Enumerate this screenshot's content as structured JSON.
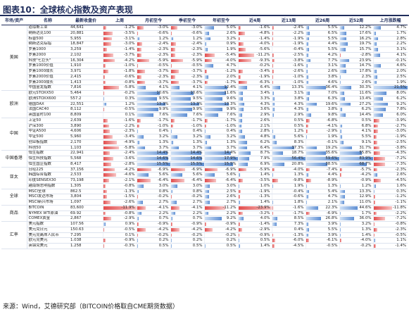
{
  "title": "图表10：全球核心指数及资产表现",
  "source": "来源：Wind，艾德研究部（BITCOIN价格取自CME期货数据）",
  "headers": [
    "市场/资产",
    "名称",
    "最新收盘价",
    "上周",
    "月初至今",
    "季初至今",
    "年初至今",
    "近4周",
    "近13周",
    "近26周",
    "近52周",
    "上月涨跌幅"
  ],
  "groups": [
    {
      "label": "美国",
      "rows": [
        {
          "name": "道琼斯工业",
          "last": "44,641",
          "vals": [
            -1.2,
            -3.0,
            -3.0,
            5.0,
            -1.6,
            -2.4,
            5.5,
            12.2,
            4.7
          ]
        },
        {
          "name": "纳斯达克100",
          "last": "20,881",
          "vals": [
            -3.5,
            -0.6,
            -0.6,
            2.6,
            -4.8,
            -2.2,
            6.5,
            17.6,
            1.7
          ]
        },
        {
          "name": "标普500",
          "last": "5,955",
          "vals": [
            -3.1,
            1.2,
            1.2,
            3.2,
            -1.4,
            -1.9,
            5.5,
            16.2,
            2.8
          ]
        },
        {
          "name": "纳斯达克综指",
          "last": "18,847",
          "vals": [
            -3.0,
            -2.4,
            -2.4,
            0.9,
            -4.0,
            -1.9,
            4.4,
            19.7,
            2.2
          ]
        },
        {
          "name": "罗素1000",
          "last": "3,259",
          "vals": [
            -1.4,
            -2.3,
            -2.3,
            1.9,
            -5.6,
            -0.4,
            5.5,
            15.7,
            3.1
          ]
        },
        {
          "name": "罗素2000",
          "last": "2,102",
          "vals": [
            -3.7,
            -2.3,
            -2.3,
            -5.4,
            -11.2,
            -2.5,
            4.2,
            -2.8,
            4.1
          ]
        },
        {
          "name": "科技\"七巨头\"",
          "last": "16,304",
          "vals": [
            -4.2,
            -5.9,
            -5.9,
            -4.0,
            -9.3,
            -3.8,
            7.7,
            23.9,
            -0.1
          ]
        },
        {
          "name": "罗素1000价值",
          "last": "1,910",
          "vals": [
            -1.0,
            -0.5,
            -0.5,
            4.7,
            -0.2,
            -1.6,
            3.1,
            14.7,
            4.6
          ]
        },
        {
          "name": "罗素1000成长",
          "last": "3,971",
          "vals": [
            -1.8,
            -3.7,
            -3.7,
            -1.2,
            -3.4,
            -2.6,
            2.6,
            17.8,
            2.0
          ]
        },
        {
          "name": "罗素2000价值",
          "last": "2,415",
          "vals": [
            -0.6,
            -2.3,
            -2.3,
            2.0,
            -1.9,
            -1.0,
            3.8,
            2.3,
            2.5
          ]
        },
        {
          "name": "罗素2000成长",
          "last": "1,413",
          "vals": [
            -0.8,
            -3.7,
            -3.7,
            -1.7,
            -6.3,
            -1.0,
            4.6,
            2.6,
            1.9
          ]
        },
        {
          "name": "中国金龙指数",
          "last": "7,816",
          "vals": [
            -5.8,
            4.1,
            4.1,
            12.4,
            6.4,
            13.3,
            36.4,
            30.3,
            21.5
          ]
        }
      ]
    },
    {
      "label": "欧洲",
      "rows": [
        {
          "name": "欧元STOXX50",
          "last": "5,464",
          "vals": [
            -0.2,
            10.6,
            10.6,
            11.6,
            3.4,
            3.1,
            7.0,
            11.6,
            8.0
          ]
        },
        {
          "name": "欧洲STOXX600",
          "last": "557.2",
          "vals": [
            0.3,
            9.5,
            9.5,
            9.6,
            3.3,
            3.8,
            6.3,
            13.4,
            6.2
          ]
        },
        {
          "name": "德国DAX",
          "last": "22,551",
          "vals": [
            1.2,
            13.3,
            13.3,
            13.3,
            4.3,
            4.3,
            19.6,
            27.2,
            9.2
          ]
        },
        {
          "name": "法国CAC40",
          "last": "8,112",
          "vals": [
            -0.5,
            9.9,
            9.9,
            9.9,
            3.6,
            4.3,
            3.8,
            6.2,
            7.8
          ]
        },
        {
          "name": "英国富时100",
          "last": "8,809",
          "vals": [
            0.1,
            7.6,
            7.6,
            7.6,
            2.9,
            2.9,
            9.8,
            14.4,
            6.0
          ]
        }
      ]
    },
    {
      "label": "中国",
      "rows": [
        {
          "name": "上证50",
          "last": "2,639",
          "vals": [
            -1.6,
            -1.7,
            -1.7,
            -1.7,
            2.6,
            0.5,
            -6.8,
            0.5,
            -3.9
          ]
        },
        {
          "name": "沪深300",
          "last": "3,890",
          "vals": [
            -2.2,
            -1.0,
            -1.0,
            -1.0,
            2.1,
            0.5,
            -4.1,
            6.8,
            -2.7
          ]
        },
        {
          "name": "中证A500",
          "last": "4,606",
          "vals": [
            -2.3,
            0.4,
            0.4,
            0.4,
            2.8,
            1.2,
            -2.9,
            4.1,
            -3.0
          ]
        },
        {
          "name": "中证500",
          "last": "5,960",
          "vals": [
            -3.4,
            3.2,
            3.2,
            3.2,
            4.8,
            5.6,
            1.9,
            5.5,
            -1.9
          ]
        },
        {
          "name": "创业板指数",
          "last": "2,170",
          "vals": [
            -4.9,
            1.3,
            1.3,
            1.3,
            6.2,
            8.3,
            -0.1,
            9.1,
            -2.5
          ]
        },
        {
          "name": "科创50",
          "last": "1,103",
          "vals": [
            -5.8,
            3.7,
            3.7,
            3.7,
            6.4,
            37.3,
            19.2,
            31.7,
            -3.8
          ]
        }
      ]
    },
    {
      "label": "中国香港",
      "rows": [
        {
          "name": "恒生指数",
          "last": "22,941",
          "vals": [
            -2.4,
            14.4,
            14.4,
            14.4,
            8.7,
            18.7,
            35.6,
            55.8,
            -4.3
          ]
        },
        {
          "name": "恒生科技指数",
          "last": "5,568",
          "vals": [
            -3.6,
            14.6,
            14.6,
            17.9,
            7.9,
            56.4,
            59.6,
            83.9,
            -7.2
          ]
        },
        {
          "name": "恒生国企指数",
          "last": "8,417",
          "vals": [
            -2.8,
            15.5,
            15.5,
            15.5,
            6.9,
            20.8,
            38.5,
            68.7,
            -7.3
          ]
        }
      ]
    },
    {
      "label": "亚太",
      "rows": [
        {
          "name": "日经225",
          "last": "37,156",
          "vals": [
            -4.2,
            -6.9,
            -6.9,
            -6.9,
            -5.9,
            -4.0,
            -7.4,
            -5.7,
            -2.3
          ]
        },
        {
          "name": "韩国综合指数",
          "last": "2,533",
          "vals": [
            -4.6,
            5.6,
            5.6,
            5.6,
            1.4,
            1.3,
            4.4,
            -4.2,
            2.6
          ]
        },
        {
          "name": "印度SENSEX30",
          "last": "73,198",
          "vals": [
            -2.1,
            -6.4,
            -6.4,
            -6.4,
            -3.5,
            -9.8,
            -8.9,
            -0.9,
            -4.5
          ]
        },
        {
          "name": "越南胡志明指数",
          "last": "1,305",
          "vals": [
            -0.8,
            3.0,
            3.0,
            3.0,
            1.0,
            1.9,
            1.3,
            1.2,
            1.6
          ]
        }
      ]
    },
    {
      "label": "全球",
      "rows": [
        {
          "name": "MSCI全球",
          "last": "862.5",
          "vals": [
            -1.3,
            0.8,
            0.8,
            2.5,
            -1.9,
            -0.4,
            5.4,
            13.3,
            0.3
          ]
        },
        {
          "name": "MSCI发达市场",
          "last": "3,804",
          "vals": [
            -1.5,
            -0.2,
            -0.2,
            2.6,
            -1.3,
            -0.6,
            4.7,
            12.9,
            -1.2
          ]
        },
        {
          "name": "MSCI新兴市场",
          "last": "1,097",
          "vals": [
            -2.6,
            2.7,
            2.7,
            2.7,
            1.4,
            1.8,
            2.1,
            11.0,
            -1.1
          ]
        }
      ]
    },
    {
      "label": "商品",
      "rows": [
        {
          "name": "BITCOIN",
          "last": "83,600",
          "vals": [
            -11.9,
            -4.1,
            -4.1,
            -11.2,
            -23.9,
            -1.6,
            22.3,
            44.6,
            -11.8
          ]
        },
        {
          "name": "NYMEX WTI原油",
          "last": "69.92",
          "vals": [
            -0.8,
            2.2,
            2.2,
            2.2,
            -3.2,
            -1.7,
            -6.9,
            1.7,
            -2.2
          ]
        },
        {
          "name": "COMEX黄金",
          "last": "2,867",
          "vals": [
            -2.9,
            0.7,
            0.7,
            9.2,
            4.0,
            8.5,
            26.8,
            36.0,
            -7.2
          ]
        }
      ]
    },
    {
      "label": "汇率",
      "rows": [
        {
          "name": "美元指数",
          "last": "107.56",
          "vals": [
            0.9,
            -0.9,
            -0.9,
            -0.9,
            -1.4,
            7.3,
            3.9,
            3.2,
            -0.8
          ]
        },
        {
          "name": "美元兑日元",
          "last": "150.63",
          "vals": [
            -0.5,
            -4.2,
            -4.2,
            -4.2,
            -2.9,
            0.4,
            5.5,
            1.3,
            -2.3
          ]
        },
        {
          "name": "美元兑离岸人民币",
          "last": "7.295",
          "vals": [
            0.1,
            -0.2,
            -0.2,
            -0.2,
            -0.9,
            -1.3,
            3.9,
            1.4,
            -0.5
          ]
        },
        {
          "name": "欧元兑美元",
          "last": "1.038",
          "vals": [
            -0.9,
            0.2,
            0.2,
            0.2,
            0.5,
            -6.0,
            -6.1,
            -4.0,
            1.1
          ]
        },
        {
          "name": "英镑兑美元",
          "last": "1.258",
          "vals": [
            -0.3,
            0.5,
            0.5,
            0.5,
            1.4,
            -4.5,
            -0.5,
            -0.2,
            -1.4
          ]
        }
      ]
    }
  ]
}
